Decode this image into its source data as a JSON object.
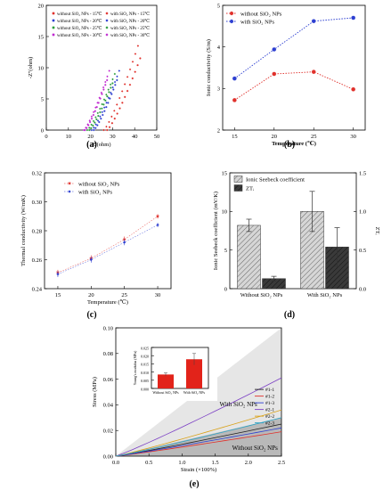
{
  "panels": {
    "a": "(a)",
    "b": "(b)",
    "c": "(c)",
    "d": "(d)",
    "e": "(e)"
  },
  "chart_data": [
    {
      "id": "a",
      "type": "scatter",
      "xlabel": "Z'(ohm)",
      "ylabel": "-Z''(ohm)",
      "xlim": [
        0,
        50
      ],
      "ylim": [
        0,
        20
      ],
      "xticks": [
        0,
        10,
        20,
        30,
        40,
        50
      ],
      "yticks": [
        0,
        5,
        10,
        15,
        20
      ],
      "legend_position": "top",
      "series": [
        {
          "name": "without SiO₂ NPs - 15℃",
          "color": "#e0302b",
          "x0": 27.5,
          "x1": 42.5,
          "y1": 11.5
        },
        {
          "name": "with SiO₂ NPs - 15℃",
          "color": "#e0302b",
          "x0": 26,
          "x1": 41.5,
          "y1": 13.5
        },
        {
          "name": "without SiO₂ NPs - 20℃",
          "color": "#2d3fd1",
          "x0": 21.5,
          "x1": 32,
          "y1": 8
        },
        {
          "name": "with SiO₂ NPs - 20℃",
          "color": "#2d3fd1",
          "x0": 20.5,
          "x1": 33,
          "y1": 9.5
        },
        {
          "name": "without SiO₂ NPs - 25℃",
          "color": "#2e9e3e",
          "x0": 19.5,
          "x1": 30,
          "y1": 7.5
        },
        {
          "name": "with SiO₂ NPs - 25℃",
          "color": "#2e9e3e",
          "x0": 18.5,
          "x1": 31,
          "y1": 9
        },
        {
          "name": "without SiO₂ NPs - 30℃",
          "color": "#c02ad0",
          "x0": 17.5,
          "x1": 27.5,
          "y1": 8
        },
        {
          "name": "with SiO₂ NPs - 30℃",
          "color": "#c02ad0",
          "x0": 17,
          "x1": 28.5,
          "y1": 9.5
        }
      ]
    },
    {
      "id": "b",
      "type": "line",
      "xlabel": "Temperature (℃)",
      "ylabel": "Ionic conductivity (S/m)",
      "x": [
        15,
        20,
        25,
        30
      ],
      "xlim": [
        13.5,
        31.5
      ],
      "ylim": [
        2,
        5
      ],
      "xticks": [
        15,
        20,
        25,
        30
      ],
      "yticks": [
        2,
        3,
        4,
        5
      ],
      "legend_position": "top-left",
      "series": [
        {
          "name": "without SiO₂ NPs",
          "color": "#e0302b",
          "values": [
            2.72,
            3.35,
            3.4,
            2.98
          ]
        },
        {
          "name": "with SiO₂ NPs",
          "color": "#2d3fd1",
          "values": [
            3.24,
            3.94,
            4.62,
            4.7
          ]
        }
      ]
    },
    {
      "id": "c",
      "type": "line",
      "xlabel": "Temperature (℃)",
      "ylabel": "Thermal conductivity (W/mK)",
      "x": [
        15,
        20,
        25,
        30
      ],
      "xlim": [
        13,
        32
      ],
      "ylim": [
        0.24,
        0.32
      ],
      "xticks": [
        15,
        20,
        25,
        30
      ],
      "yticks": [
        0.24,
        0.26,
        0.28,
        0.3,
        0.32
      ],
      "ytick_labels": [
        "0.24",
        "0.26",
        "0.28",
        "0.30",
        "0.32"
      ],
      "legend_position": "top-left",
      "series": [
        {
          "name": "without SiO₂ NPs",
          "color": "#e0302b",
          "values": [
            0.251,
            0.261,
            0.274,
            0.29
          ],
          "errors": [
            0.002,
            0.002,
            0.002,
            0.0015
          ]
        },
        {
          "name": "with SiO₂ NPs",
          "color": "#2d3fd1",
          "values": [
            0.25,
            0.26,
            0.272,
            0.284
          ],
          "errors": [
            0.002,
            0.002,
            0.002,
            0.0015
          ]
        }
      ]
    },
    {
      "id": "d",
      "type": "bar",
      "ylabel": "Ionic Seebeck coefficient (mV/K)",
      "y2label": "ZTᵢ",
      "categories": [
        "Without SiO₂ NPs",
        "With SiO₂ NPs"
      ],
      "ylim": [
        0,
        15
      ],
      "y2lim": [
        0,
        1.5
      ],
      "yticks": [
        0,
        5,
        10,
        15
      ],
      "y2ticks": [
        0.0,
        0.5,
        1.0,
        1.5
      ],
      "y2tick_labels": [
        "0.0",
        "0.5",
        "1.0",
        "1.5"
      ],
      "legend_position": "top-left",
      "series": [
        {
          "name": "Ionic Seebeck coefficient",
          "axis": "left",
          "color": "#c8c8c8",
          "values": [
            8.2,
            10.0
          ],
          "errors": [
            0.8,
            2.6
          ]
        },
        {
          "name": "ZTᵢ",
          "axis": "right",
          "color": "#3a3a3a",
          "values": [
            0.13,
            0.54
          ],
          "errors": [
            0.03,
            0.25
          ]
        }
      ]
    },
    {
      "id": "e",
      "type": "line",
      "xlabel": "Strain (×100%)",
      "ylabel": "Stress (MPa)",
      "xlim": [
        0,
        2.5
      ],
      "ylim": [
        0,
        0.1
      ],
      "xticks": [
        0.0,
        0.5,
        1.0,
        1.5,
        2.0,
        2.5
      ],
      "xtick_labels": [
        "0.0",
        "0.5",
        "1.0",
        "1.5",
        "2.0",
        "2.5"
      ],
      "yticks": [
        0.0,
        0.02,
        0.04,
        0.06,
        0.08,
        0.1
      ],
      "ytick_labels": [
        "0.00",
        "0.02",
        "0.04",
        "0.06",
        "0.08",
        "0.10"
      ],
      "legend_position": "right",
      "annotations": [
        "With SiO₂ NPs",
        "Without SiO₂ NPs"
      ],
      "series": [
        {
          "name": "#1-1",
          "color": "#222222",
          "end": 0.025
        },
        {
          "name": "#1-2",
          "color": "#e0302b",
          "end": 0.019
        },
        {
          "name": "#1-3",
          "color": "#2d3fd1",
          "end": 0.022
        },
        {
          "name": "#2-1",
          "color": "#7b3fc4",
          "end": 0.061
        },
        {
          "name": "#2-2",
          "color": "#d9a21b",
          "end": 0.036
        },
        {
          "name": "#2-3",
          "color": "#2fa3c4",
          "end": 0.03
        }
      ],
      "inset": {
        "type": "bar",
        "ylabel": "Young's modulus (MPa)",
        "categories": [
          "Without SiO₂ NPs",
          "With SiO₂ NPs"
        ],
        "values": [
          0.0085,
          0.0178
        ],
        "errors": [
          0.001,
          0.0035
        ],
        "ylim": [
          0,
          0.025
        ],
        "yticks": [
          0.0,
          0.005,
          0.01,
          0.015,
          0.02,
          0.025
        ],
        "ytick_labels": [
          "0.000",
          "0.005",
          "0.010",
          "0.015",
          "0.020",
          "0.025"
        ],
        "color": "#e2231a"
      }
    }
  ]
}
